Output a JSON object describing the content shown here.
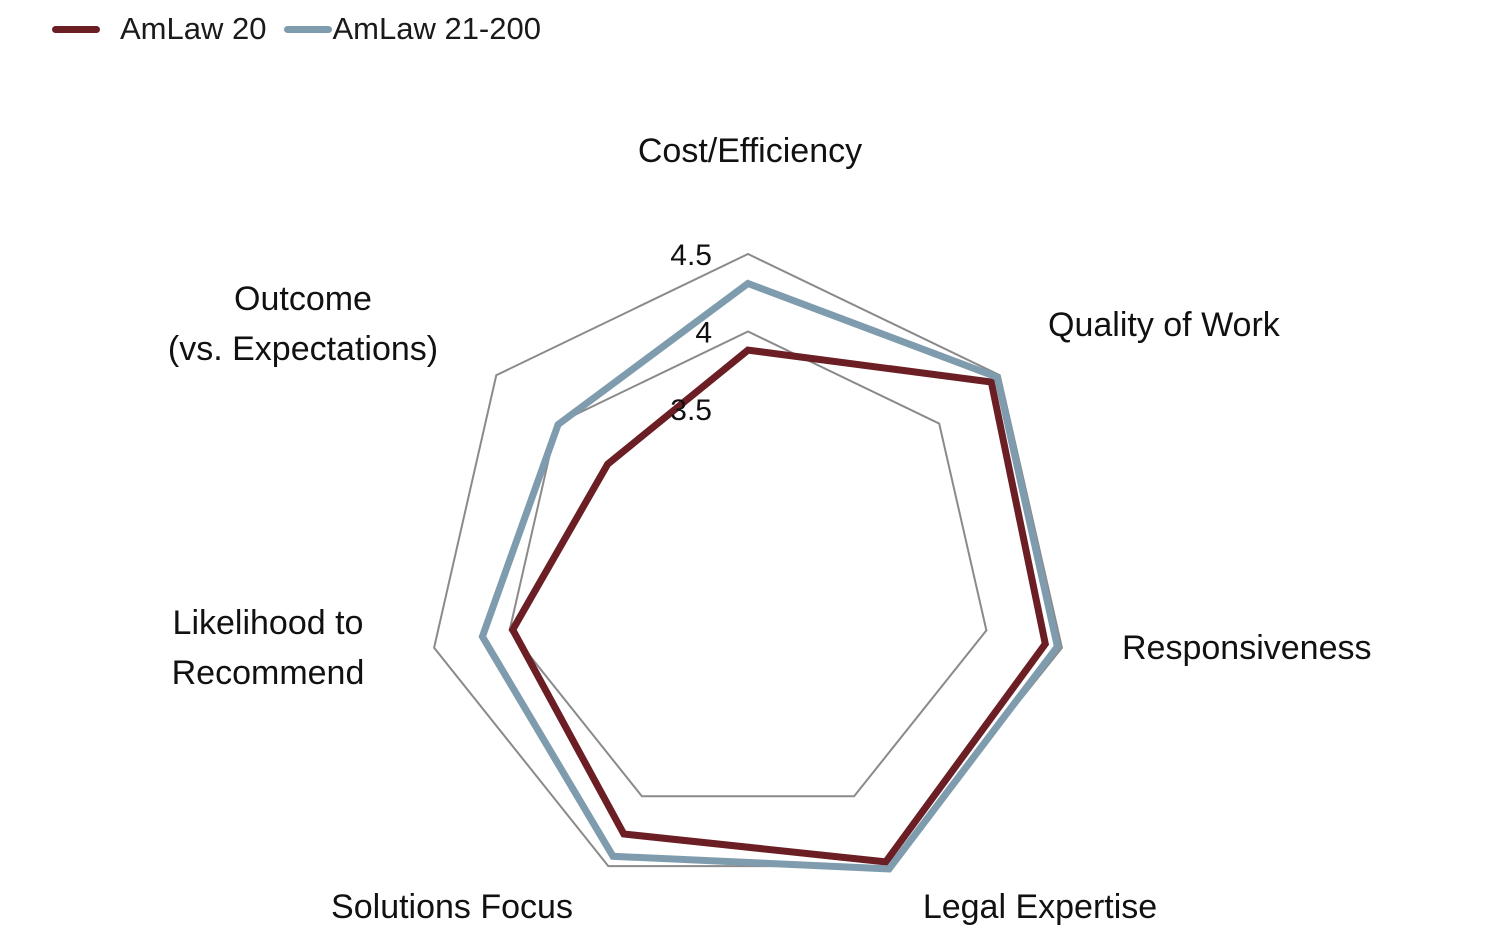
{
  "legend": {
    "items": [
      {
        "label": "AmLaw 20",
        "color": "#6b1f24"
      },
      {
        "label": "AmLaw 21-200",
        "color": "#7f9cae"
      }
    ]
  },
  "chart_data": {
    "type": "radar",
    "title": "",
    "categories": [
      [
        "Cost/Efficiency"
      ],
      [
        "Quality of Work"
      ],
      [
        "Responsiveness"
      ],
      [
        "Legal Expertise"
      ],
      [
        "Solutions Focus"
      ],
      [
        "Likelihood to",
        "Recommend"
      ],
      [
        "Outcome",
        "(vs. Expectations)"
      ]
    ],
    "radial_range": [
      3.5,
      4.5
    ],
    "ticks": [
      3.5,
      4,
      4.5
    ],
    "tick_labels": [
      "3.5",
      "4",
      "4.5"
    ],
    "gridlines": true,
    "grid_color": "#8a8a8a",
    "legend_position": "top-left",
    "series": [
      {
        "name": "AmLaw 20",
        "color": "#6b1f24",
        "values": [
          3.88,
          4.43,
          4.39,
          4.47,
          4.27,
          3.98,
          3.58
        ]
      },
      {
        "name": "AmLaw 21-200",
        "color": "#7f9cae",
        "values": [
          4.31,
          4.48,
          4.47,
          4.52,
          4.43,
          4.18,
          3.99
        ]
      }
    ]
  }
}
